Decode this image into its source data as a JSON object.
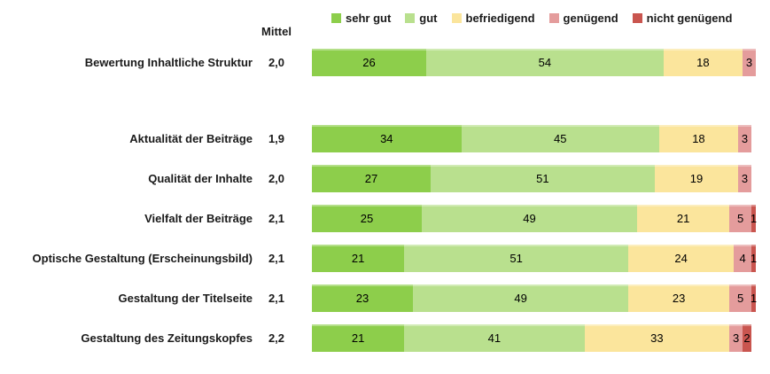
{
  "chart": {
    "mittel_header": "Mittel",
    "legend": [
      {
        "label": "sehr gut",
        "color": "#8DCE4B"
      },
      {
        "label": "gut",
        "color": "#B9E08E"
      },
      {
        "label": "befriedigend",
        "color": "#FBE59C"
      },
      {
        "label": "genügend",
        "color": "#E49C9C"
      },
      {
        "label": "nicht genügend",
        "color": "#C9554F"
      }
    ],
    "rows": [
      {
        "label": "Bewertung Inhaltliche Struktur",
        "mittel": "2,0",
        "values": [
          26,
          54,
          18,
          3,
          0
        ]
      },
      {
        "label": "Aktualität der Beiträge",
        "mittel": "1,9",
        "values": [
          34,
          45,
          18,
          3,
          0
        ]
      },
      {
        "label": "Qualität der Inhalte",
        "mittel": "2,0",
        "values": [
          27,
          51,
          19,
          3,
          0
        ]
      },
      {
        "label": "Vielfalt der Beiträge",
        "mittel": "2,1",
        "values": [
          25,
          49,
          21,
          5,
          1
        ]
      },
      {
        "label": "Optische Gestaltung (Erscheinungsbild)",
        "mittel": "2,1",
        "values": [
          21,
          51,
          24,
          4,
          1
        ]
      },
      {
        "label": "Gestaltung der Titelseite",
        "mittel": "2,1",
        "values": [
          23,
          49,
          23,
          5,
          1
        ]
      },
      {
        "label": "Gestaltung des Zeitungskopfes",
        "mittel": "2,2",
        "values": [
          21,
          41,
          33,
          3,
          2
        ]
      }
    ]
  },
  "chart_data": {
    "type": "bar",
    "stacked": true,
    "orientation": "horizontal",
    "unit": "percent",
    "title": "",
    "xlabel": "",
    "ylabel": "",
    "xlim": [
      0,
      101
    ],
    "grid": false,
    "legend_position": "top",
    "categories": [
      "Bewertung Inhaltliche Struktur",
      "Aktualität der Beiträge",
      "Qualität der Inhalte",
      "Vielfalt der Beiträge",
      "Optische Gestaltung (Erscheinungsbild)",
      "Gestaltung der Titelseite",
      "Gestaltung des Zeitungskopfes"
    ],
    "mittel_column": {
      "header": "Mittel",
      "values": [
        2.0,
        1.9,
        2.0,
        2.1,
        2.1,
        2.1,
        2.2
      ]
    },
    "series": [
      {
        "name": "sehr gut",
        "color": "#8DCE4B",
        "values": [
          26,
          34,
          27,
          25,
          21,
          23,
          21
        ]
      },
      {
        "name": "gut",
        "color": "#B9E08E",
        "values": [
          54,
          45,
          51,
          49,
          51,
          49,
          41
        ]
      },
      {
        "name": "befriedigend",
        "color": "#FBE59C",
        "values": [
          18,
          18,
          19,
          21,
          24,
          23,
          33
        ]
      },
      {
        "name": "genügend",
        "color": "#E49C9C",
        "values": [
          3,
          3,
          3,
          5,
          4,
          5,
          3
        ]
      },
      {
        "name": "nicht genügend",
        "color": "#C9554F",
        "values": [
          0,
          0,
          0,
          1,
          1,
          1,
          2
        ]
      }
    ]
  }
}
